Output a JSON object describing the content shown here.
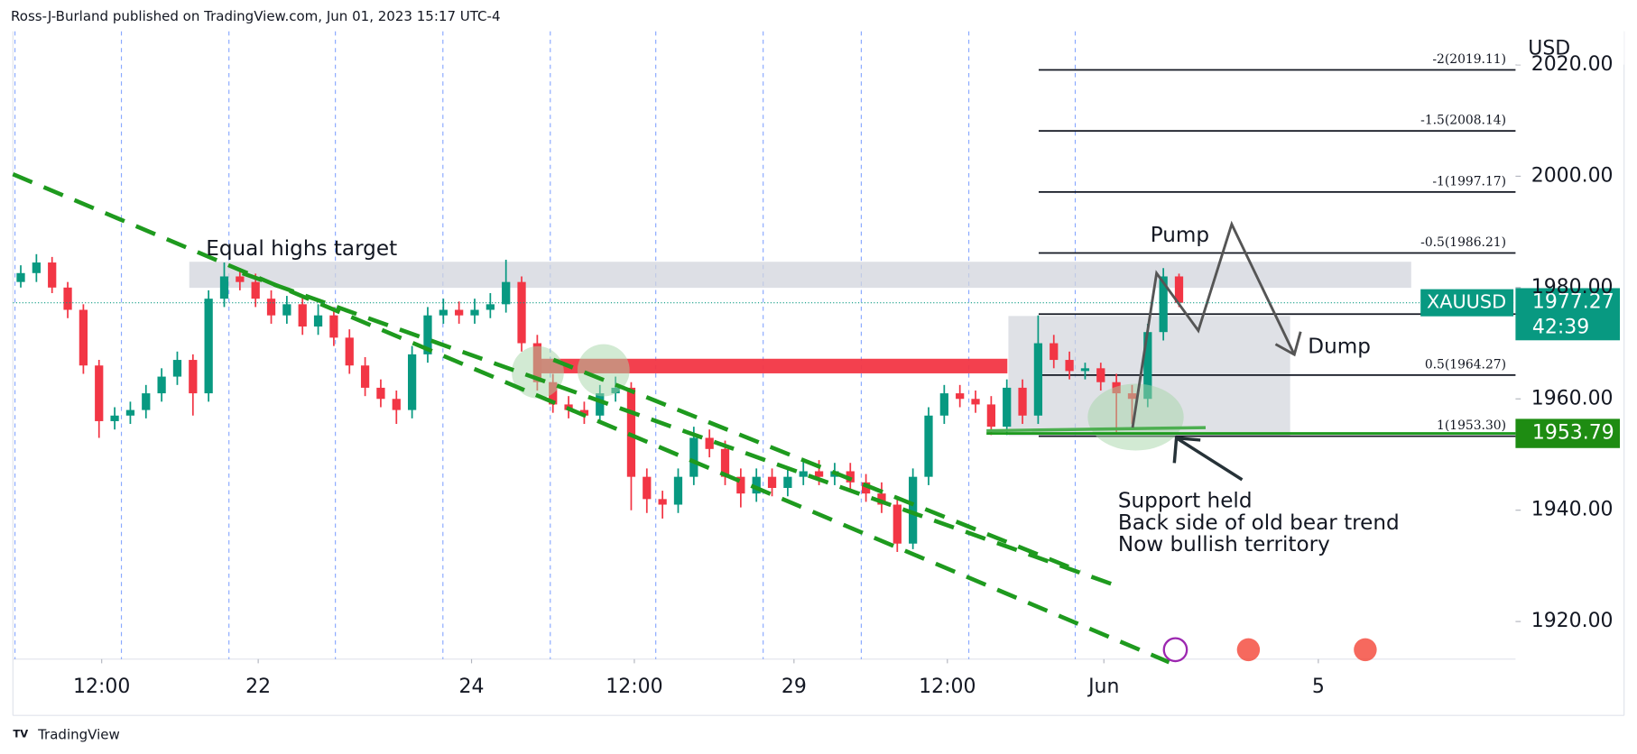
{
  "header": {
    "text": "Ross-J-Burland published on TradingView.com, Jun 01, 2023 15:17 UTC-4"
  },
  "footer": {
    "text": "TradingView"
  },
  "chart_data": {
    "type": "candlestick",
    "symbol": "XAUUSD",
    "currency": "USD",
    "up_color": "#089981",
    "down_color": "#f23645",
    "open": [
      1981,
      1982.6,
      1984.5,
      1980,
      1976,
      1966,
      1956,
      1957,
      1958,
      1961,
      1964,
      1967,
      1961,
      1978,
      1982,
      1981,
      1978,
      1975,
      1977,
      1973,
      1975,
      1971,
      1966,
      1962,
      1960,
      1958,
      1968,
      1975,
      1976,
      1975,
      1976,
      1977,
      1981,
      1970,
      1963,
      1959,
      1958,
      1957,
      1961,
      1962,
      1946,
      1942,
      1941,
      1946,
      1953,
      1951,
      1946,
      1943,
      1946,
      1944,
      1946,
      1947,
      1946,
      1947,
      1945,
      1943,
      1941,
      1934,
      1946,
      1957,
      1961,
      1960,
      1959,
      1955,
      1962,
      1957,
      1970,
      1967,
      1965,
      1965.5,
      1963,
      1961,
      1960,
      1972,
      1982
    ],
    "high": [
      1984,
      1986,
      1985.5,
      1981,
      1977,
      1967,
      1958.5,
      1959.5,
      1962.5,
      1965.5,
      1968.5,
      1968,
      1979.5,
      1984.5,
      1983.5,
      1982.5,
      1979.5,
      1978.5,
      1978.5,
      1977,
      1976.5,
      1972.5,
      1967.5,
      1963.5,
      1961.5,
      1969.5,
      1976.5,
      1978,
      1977.5,
      1978,
      1979,
      1985,
      1982,
      1971.5,
      1964.5,
      1960.5,
      1959.5,
      1962.5,
      1964,
      1963,
      1947.5,
      1943.5,
      1947.5,
      1955,
      1954.5,
      1952.5,
      1947.5,
      1947.5,
      1947.5,
      1947.5,
      1949,
      1949,
      1948.5,
      1948.5,
      1946.5,
      1945,
      1942.5,
      1947.5,
      1958.5,
      1962.5,
      1962.5,
      1961.5,
      1960.5,
      1963.5,
      1963.5,
      1975,
      1971.5,
      1968.5,
      1966.5,
      1966.5,
      1964.5,
      1962.5,
      1973.5,
      1983.5,
      1982.5
    ],
    "low": [
      1980,
      1981,
      1979,
      1974.5,
      1964.5,
      1953,
      1954.5,
      1955.5,
      1956.5,
      1959.5,
      1962.5,
      1957,
      1959.5,
      1976.5,
      1979.5,
      1976.5,
      1973.5,
      1973.5,
      1971.5,
      1971.5,
      1969.5,
      1964.5,
      1960.5,
      1958.5,
      1955.5,
      1956.5,
      1966.5,
      1973.5,
      1973.5,
      1973.5,
      1974.5,
      1975.5,
      1968.5,
      1961.5,
      1957.5,
      1956.5,
      1955.5,
      1955.5,
      1959.5,
      1940,
      1939.5,
      1938.5,
      1939.5,
      1944.5,
      1949.5,
      1944.5,
      1940.5,
      1941.5,
      1942.5,
      1942.5,
      1944.5,
      1944.5,
      1944.5,
      1943.5,
      1941.5,
      1939.5,
      1932.5,
      1933,
      1944.5,
      1955.5,
      1958.5,
      1957.5,
      1953.5,
      1953.5,
      1955.5,
      1955.5,
      1965.5,
      1963.5,
      1963.5,
      1961.5,
      1954,
      1955.5,
      1958.5,
      1970.5,
      1976.5
    ],
    "close": [
      1982.6,
      1984.5,
      1980,
      1976,
      1966,
      1956,
      1957,
      1958,
      1961,
      1964,
      1967,
      1961,
      1978,
      1982,
      1981,
      1978,
      1975,
      1977,
      1973,
      1975,
      1971,
      1966,
      1962,
      1960,
      1958,
      1968,
      1975,
      1976,
      1975,
      1976,
      1977,
      1981,
      1970,
      1963,
      1959,
      1958,
      1957,
      1961,
      1962,
      1946,
      1942,
      1941,
      1946,
      1953,
      1951,
      1946,
      1943,
      1946,
      1944,
      1946,
      1947,
      1946,
      1947,
      1945,
      1943,
      1941,
      1934,
      1946,
      1957,
      1961,
      1960,
      1959,
      1955,
      1962,
      1957,
      1970,
      1967,
      1965,
      1965.5,
      1963,
      1961,
      1960,
      1972,
      1982,
      1977.27
    ],
    "xlim": [
      0,
      96
    ],
    "xticks": [
      {
        "value": 5.67,
        "label": "12:00"
      },
      {
        "value": 15.67,
        "label": "22"
      },
      {
        "value": 29.3,
        "label": "24"
      },
      {
        "value": 39.7,
        "label": "12:00"
      },
      {
        "value": 49.9,
        "label": "29"
      },
      {
        "value": 59.7,
        "label": "12:00"
      },
      {
        "value": 69.7,
        "label": "Jun"
      },
      {
        "value": 83.4,
        "label": "5"
      }
    ],
    "xgrid": [
      0.13,
      6.93,
      13.8,
      20.6,
      27.47,
      34.33,
      41.07,
      47.93,
      54.2,
      61.07,
      67.87
    ],
    "ylim": [
      1913.25,
      2026.04
    ],
    "yticks": [
      {
        "value": 1920,
        "label": "1920.00"
      },
      {
        "value": 1940,
        "label": "1940.00"
      },
      {
        "value": 1960,
        "label": "1960.00"
      },
      {
        "value": 1980,
        "label": "1980.00"
      },
      {
        "value": 2000,
        "label": "2000.00"
      },
      {
        "value": 2020,
        "label": "2020.00"
      }
    ],
    "last_price": {
      "value": 1977.27,
      "label": "1977.27",
      "countdown": "42:39"
    },
    "support_price": {
      "value": 1953.79,
      "label": "1953.79"
    },
    "fib_levels": [
      {
        "value": 2019.11,
        "label": "-2(2019.11)"
      },
      {
        "value": 2008.14,
        "label": "-1.5(2008.14)"
      },
      {
        "value": 1997.17,
        "label": "-1(1997.17)"
      },
      {
        "value": 1986.21,
        "label": "-0.5(1986.21)"
      },
      {
        "value": 1975.24,
        "label": null
      },
      {
        "value": 1964.27,
        "label": "0.5(1964.27)"
      },
      {
        "value": 1953.3,
        "label": "1(1953.30)"
      }
    ],
    "annotations": {
      "equal_highs": "Equal highs target",
      "pump": "Pump",
      "dump": "Dump",
      "support": [
        "Support held",
        "Back side of old bear trend",
        "Now bullish territory"
      ]
    }
  }
}
